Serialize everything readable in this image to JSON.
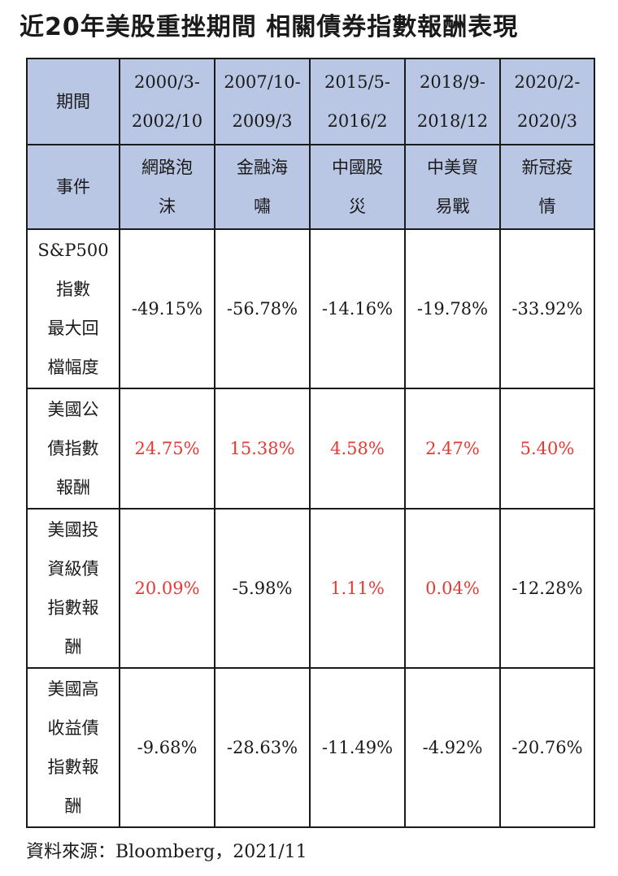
{
  "title": "近20年美股重挫期間 相關債券指數報酬表現",
  "source": "資料來源：Bloomberg，2021/11",
  "colors": {
    "header_bg": "#b9c7e4",
    "positive": "#e53935",
    "negative": "#1a1a1a",
    "border": "#1a1a1a"
  },
  "chart_data": {
    "type": "table",
    "title": "近20年美股重挫期間 相關債券指數報酬表現",
    "columns": [
      {
        "period": "2000/3-\n2002/10",
        "event": "網路泡\n沫"
      },
      {
        "period": "2007/10-\n2009/3",
        "event": "金融海\n嘯"
      },
      {
        "period": "2015/5-\n2016/2",
        "event": "中國股\n災"
      },
      {
        "period": "2018/9-\n2018/12",
        "event": "中美貿\n易戰"
      },
      {
        "period": "2020/2-\n2020/3",
        "event": "新冠疫\n情"
      }
    ],
    "header_labels": {
      "period": "期間",
      "event": "事件"
    },
    "rows": [
      {
        "label": "S&P500\n指數\n最大回\n檔幅度",
        "values": [
          "-49.15%",
          "-56.78%",
          "-14.16%",
          "-19.78%",
          "-33.92%"
        ],
        "height": 196
      },
      {
        "label": "美國公\n債指數\n報酬",
        "values": [
          "24.75%",
          "15.38%",
          "4.58%",
          "2.47%",
          "5.40%"
        ],
        "height": 148
      },
      {
        "label": "美國投\n資級債\n指數報\n酬",
        "values": [
          "20.09%",
          "-5.98%",
          "1.11%",
          "0.04%",
          "-12.28%"
        ],
        "height": 196
      },
      {
        "label": "美國高\n收益債\n指數報\n酬",
        "values": [
          "-9.68%",
          "-28.63%",
          "-11.49%",
          "-4.92%",
          "-20.76%"
        ],
        "height": 196
      }
    ]
  }
}
